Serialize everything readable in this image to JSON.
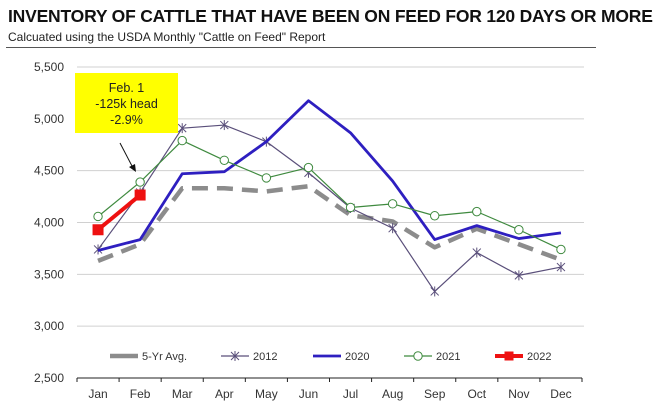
{
  "header": {
    "title": "INVENTORY OF CATTLE THAT HAVE BEEN ON FEED FOR 120 DAYS OR MORE",
    "subtitle": "Calcuated using the USDA Monthly \"Cattle on Feed\" Report"
  },
  "annotation": {
    "lines": [
      "Feb. 1",
      "-125k head",
      "-2.9%"
    ],
    "background": "#ffff00",
    "points_to": {
      "series": "2022",
      "month": "Feb"
    }
  },
  "chart_data": {
    "type": "line",
    "title": "INVENTORY OF CATTLE THAT HAVE BEEN ON FEED FOR 120 DAYS OR MORE",
    "subtitle": "Calcuated using the USDA Monthly \"Cattle on Feed\" Report",
    "xlabel": "",
    "ylabel": "",
    "categories": [
      "Jan",
      "Feb",
      "Mar",
      "Apr",
      "May",
      "Jun",
      "Jul",
      "Aug",
      "Sep",
      "Oct",
      "Nov",
      "Dec"
    ],
    "ylim": [
      2500,
      5500
    ],
    "yticks": [
      2500,
      3000,
      3500,
      4000,
      4500,
      5000,
      5500
    ],
    "ytick_labels": [
      "2,500",
      "3,000",
      "3,500",
      "4,000",
      "4,500",
      "5,000",
      "5,500"
    ],
    "grid": true,
    "legend_position": "bottom-inside",
    "series": [
      {
        "name": "5-Yr Avg.",
        "color": "#8c8c8c",
        "style": "dashed",
        "marker": "none",
        "values": [
          3630,
          3790,
          4330,
          4330,
          4300,
          4350,
          4070,
          4010,
          3760,
          3940,
          3790,
          3640
        ]
      },
      {
        "name": "2012",
        "color": "#5a4f7a",
        "style": "solid",
        "marker": "star",
        "values": [
          3740,
          4290,
          4910,
          4940,
          4780,
          4480,
          4140,
          3945,
          3335,
          3710,
          3490,
          3570
        ]
      },
      {
        "name": "2020",
        "color": "#2e1fc0",
        "style": "solid",
        "marker": "none",
        "values": [
          3730,
          3835,
          4470,
          4490,
          4780,
          5175,
          4865,
          4400,
          3835,
          3970,
          3845,
          3900
        ]
      },
      {
        "name": "2021",
        "color": "#3f8a3f",
        "style": "solid",
        "marker": "circle",
        "values": [
          4058,
          4390,
          4790,
          4600,
          4430,
          4530,
          4145,
          4180,
          4065,
          4105,
          3930,
          3740
        ]
      },
      {
        "name": "2022",
        "color": "#ee1111",
        "style": "solid",
        "marker": "diamond",
        "values": [
          3930,
          4265,
          null,
          null,
          null,
          null,
          null,
          null,
          null,
          null,
          null,
          null
        ]
      }
    ]
  }
}
